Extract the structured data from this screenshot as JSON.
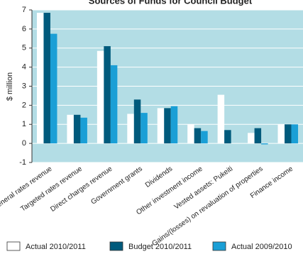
{
  "chart_data": {
    "type": "bar",
    "title": "Sources of Funds for Council Budget",
    "y_label": "$ million",
    "categories": [
      "General rates revenue",
      "Targeted rates revenue",
      "Direct charges revenue",
      "Government grants",
      "Dividends",
      "Other investment income",
      "Vested assets: Pukeiti",
      "Gains/(losses) on revaluation of properties",
      "Finance income"
    ],
    "series": [
      {
        "name": "Actual 2010/2011",
        "color": "#ffffff",
        "values": [
          6.85,
          1.5,
          4.85,
          1.55,
          1.85,
          1.0,
          2.55,
          0.55,
          1.0
        ]
      },
      {
        "name": "Budget 2010/2011",
        "color": "#005a7c",
        "values": [
          6.85,
          1.5,
          5.1,
          2.3,
          1.85,
          0.8,
          0.7,
          0.8,
          1.0
        ]
      },
      {
        "name": "Actual 2009/2010",
        "color": "#1a9fd6",
        "values": [
          5.75,
          1.35,
          4.1,
          1.6,
          1.95,
          0.65,
          0,
          -0.05,
          1.0
        ]
      }
    ],
    "ylim": [
      -1,
      7
    ],
    "yticks": [
      -1,
      0,
      1,
      2,
      3,
      4,
      5,
      6,
      7
    ],
    "grid": true,
    "background": "#b3dde5"
  }
}
